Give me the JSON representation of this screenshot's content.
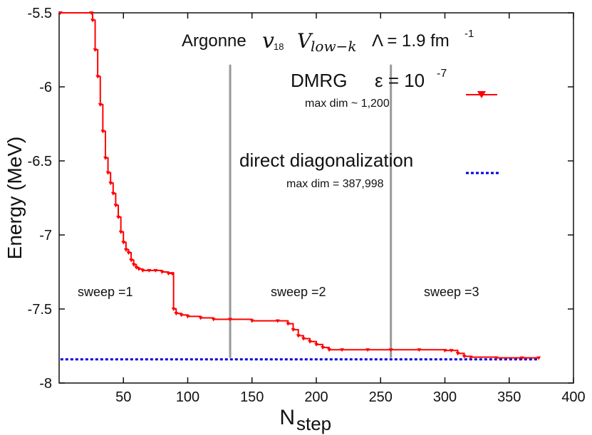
{
  "chart_data": {
    "type": "line",
    "xlabel": "N",
    "xlabel_sub": "step",
    "ylabel": "Energy (MeV)",
    "xlim": [
      0,
      400
    ],
    "ylim": [
      -8,
      -5.5
    ],
    "xticks": [
      50,
      100,
      150,
      200,
      250,
      300,
      350,
      400
    ],
    "yticks": [
      -8,
      -7.5,
      -7,
      -6.5,
      -6,
      -5.5
    ],
    "xtick_labels": [
      "50",
      "100",
      "150",
      "200",
      "250",
      "300",
      "350",
      "400"
    ],
    "ytick_labels": [
      "-8",
      "-7.5",
      "-7",
      "-6.5",
      "-6",
      "-5.5"
    ],
    "title": {
      "prefix": "Argonne",
      "potential": "v",
      "potential_sub": "18",
      "vlow": "V",
      "vlow_sub": "low−k",
      "lambda": "Λ = 1.9 fm",
      "lambda_sup": "-1"
    },
    "sweep_dividers": [
      133,
      258
    ],
    "sweep_labels": [
      "sweep =1",
      "sweep =2",
      "sweep =3"
    ],
    "series": [
      {
        "name": "DMRG",
        "legend_label": "DMRG",
        "epsilon_label": "ε = 10",
        "epsilon_exp": "-7",
        "note": "max dim ~ 1,200",
        "color": "#ff0000",
        "marker": "triangle-down",
        "x": [
          1,
          25,
          26,
          28,
          30,
          32,
          34,
          36,
          38,
          40,
          42,
          44,
          46,
          48,
          50,
          52,
          54,
          56,
          58,
          60,
          62,
          65,
          70,
          75,
          80,
          85,
          88,
          89,
          91,
          95,
          100,
          110,
          120,
          133,
          150,
          170,
          178,
          182,
          186,
          190,
          195,
          200,
          205,
          210,
          220,
          240,
          258,
          280,
          300,
          305,
          310,
          315,
          320,
          340,
          360,
          373
        ],
        "y": [
          -5.5,
          -5.5,
          -5.55,
          -5.75,
          -5.93,
          -6.12,
          -6.3,
          -6.48,
          -6.58,
          -6.65,
          -6.72,
          -6.8,
          -6.88,
          -6.98,
          -7.05,
          -7.1,
          -7.12,
          -7.17,
          -7.2,
          -7.22,
          -7.23,
          -7.24,
          -7.24,
          -7.24,
          -7.25,
          -7.26,
          -7.26,
          -7.5,
          -7.53,
          -7.54,
          -7.55,
          -7.56,
          -7.57,
          -7.57,
          -7.58,
          -7.58,
          -7.6,
          -7.64,
          -7.68,
          -7.7,
          -7.72,
          -7.74,
          -7.76,
          -7.775,
          -7.775,
          -7.775,
          -7.775,
          -7.775,
          -7.78,
          -7.78,
          -7.8,
          -7.82,
          -7.825,
          -7.83,
          -7.83,
          -7.83
        ]
      },
      {
        "name": "direct diagonalization",
        "legend_label": "direct diagonalization",
        "note": "max dim = 387,998",
        "color": "#0000dd",
        "style": "dotted",
        "y_const": -7.84,
        "x_range": [
          1,
          373
        ]
      }
    ]
  }
}
